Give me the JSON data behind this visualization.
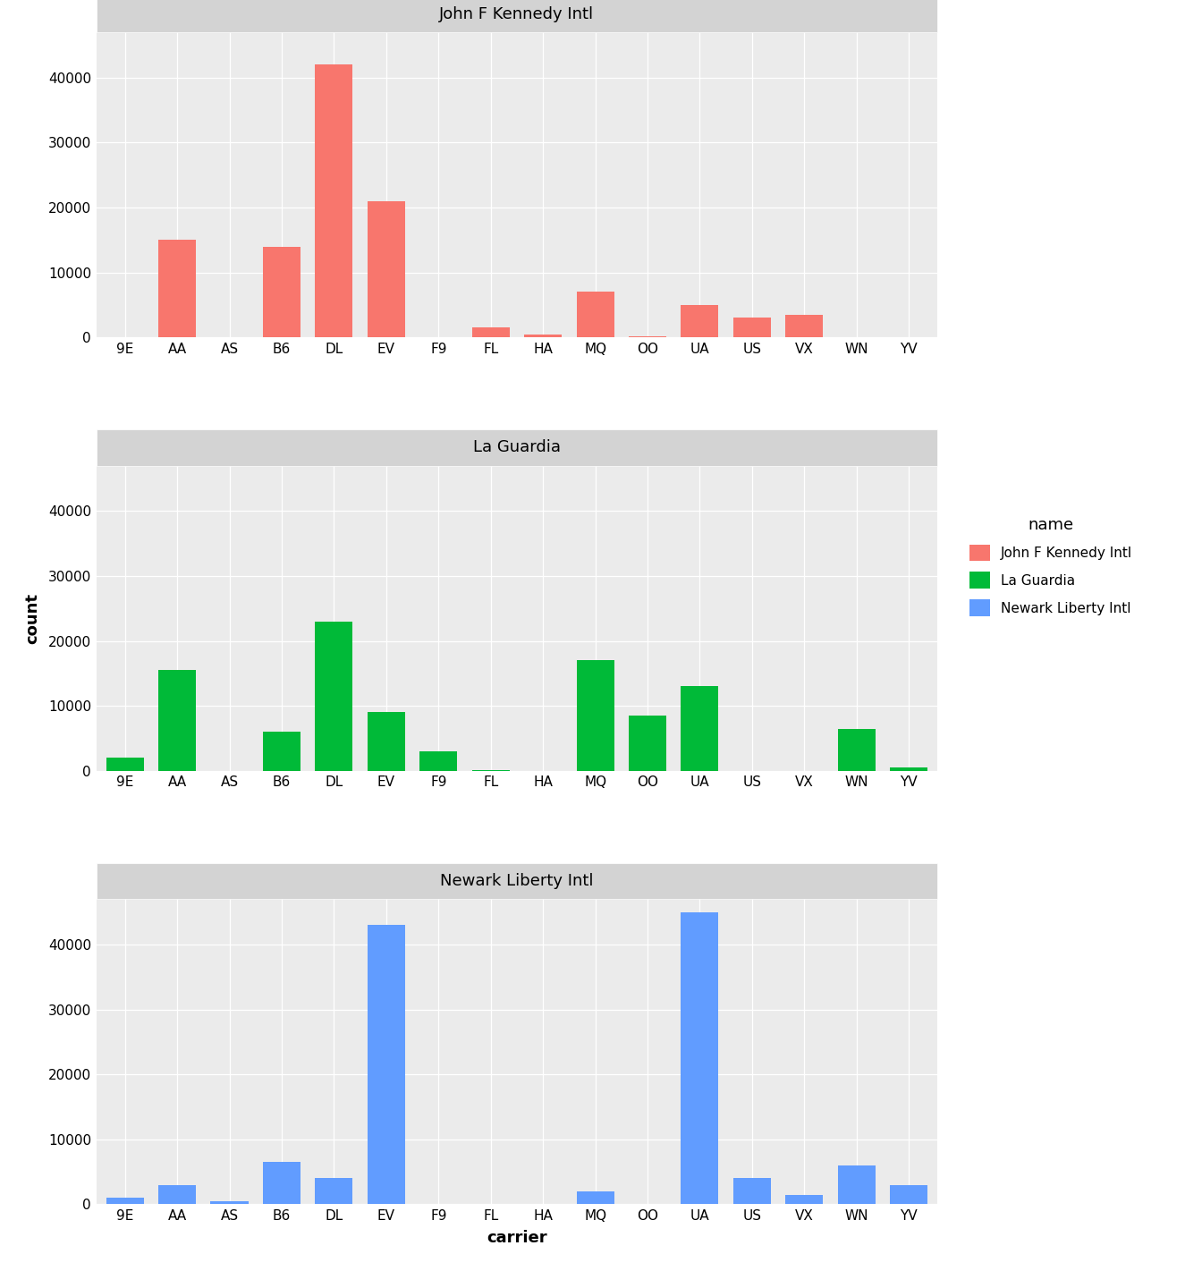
{
  "airports": [
    "John F Kennedy Intl",
    "La Guardia",
    "Newark Liberty Intl"
  ],
  "carriers": [
    "9E",
    "AA",
    "AS",
    "B6",
    "DL",
    "EV",
    "F9",
    "FL",
    "HA",
    "MQ",
    "OO",
    "UA",
    "US",
    "VX",
    "WN",
    "YV"
  ],
  "colors": [
    "#F8766D",
    "#00BA38",
    "#619CFF"
  ],
  "data": {
    "John F Kennedy Intl": {
      "9E": 0,
      "AA": 15000,
      "AS": 0,
      "B6": 14000,
      "DL": 42000,
      "EV": 21000,
      "F9": 0,
      "FL": 1500,
      "HA": 400,
      "MQ": 7000,
      "OO": 200,
      "UA": 5000,
      "US": 3000,
      "VX": 3500,
      "WN": 0,
      "YV": 0
    },
    "La Guardia": {
      "9E": 2000,
      "AA": 15500,
      "AS": 0,
      "B6": 6000,
      "DL": 23000,
      "EV": 9000,
      "F9": 3000,
      "FL": 100,
      "HA": 0,
      "MQ": 17000,
      "OO": 8500,
      "UA": 13000,
      "US": 0,
      "VX": 0,
      "WN": 6500,
      "YV": 500
    },
    "Newark Liberty Intl": {
      "9E": 1000,
      "AA": 3000,
      "AS": 500,
      "B6": 6500,
      "DL": 4000,
      "EV": 43000,
      "F9": 0,
      "FL": 0,
      "HA": 0,
      "MQ": 2000,
      "OO": 50,
      "UA": 45000,
      "US": 4000,
      "VX": 1500,
      "WN": 6000,
      "YV": 3000
    }
  },
  "ylim": [
    0,
    47000
  ],
  "yticks": [
    0,
    10000,
    20000,
    30000,
    40000
  ],
  "ylabel": "count",
  "xlabel": "carrier",
  "fig_background": "#FFFFFF",
  "panel_background": "#EBEBEB",
  "strip_color": "#D3D3D3",
  "grid_color": "#FFFFFF",
  "legend_title": "name",
  "bar_width": 0.72,
  "title_fontsize": 13,
  "axis_label_fontsize": 13,
  "tick_fontsize": 11,
  "strip_fontsize": 13
}
